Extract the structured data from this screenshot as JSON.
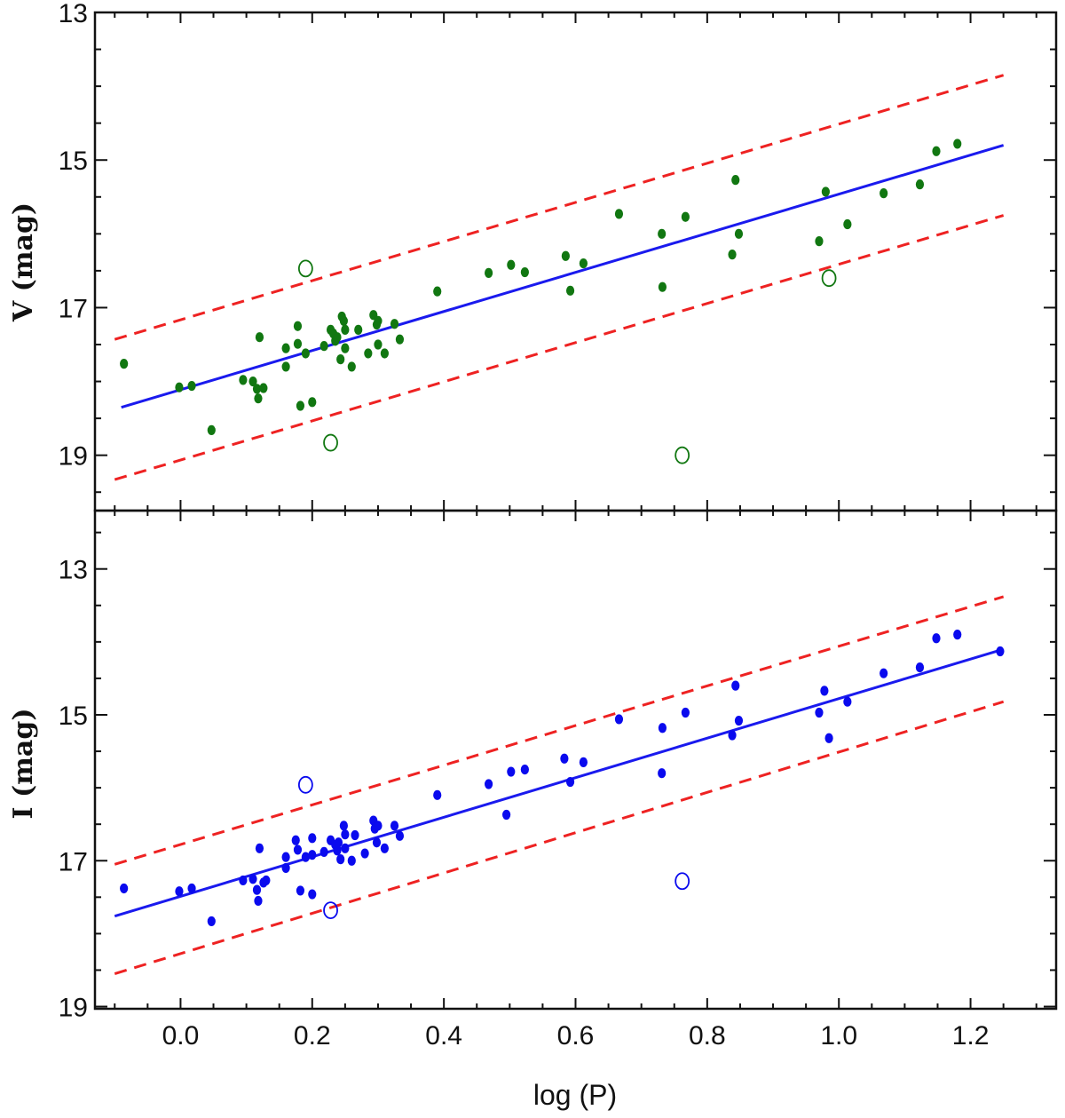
{
  "chart_data": [
    {
      "type": "scatter",
      "panel": "top",
      "ylabel": "V (mag)",
      "xlim": [
        -0.13,
        1.33
      ],
      "ylim": [
        13,
        19.75
      ],
      "y_inverted": true,
      "yticks": [
        13,
        15,
        17,
        19
      ],
      "ytick_labels": [
        "13",
        "15",
        "17",
        "19"
      ],
      "color": "#117711",
      "fit_line": {
        "x": [
          -0.09,
          1.25
        ],
        "y": [
          18.35,
          14.8
        ],
        "color": "#1a1aee"
      },
      "upper_bound": {
        "x": [
          -0.1,
          1.25
        ],
        "y": [
          17.43,
          13.85
        ],
        "color": "#ee2222",
        "dashed": true
      },
      "lower_bound": {
        "x": [
          -0.1,
          1.25
        ],
        "y": [
          19.33,
          15.75
        ],
        "color": "#ee2222",
        "dashed": true
      },
      "points": [
        [
          -0.086,
          17.76
        ],
        [
          -0.002,
          18.08
        ],
        [
          0.017,
          18.06
        ],
        [
          0.047,
          18.66
        ],
        [
          0.095,
          17.98
        ],
        [
          0.11,
          18.0
        ],
        [
          0.116,
          18.1
        ],
        [
          0.118,
          18.23
        ],
        [
          0.12,
          17.4
        ],
        [
          0.126,
          18.09
        ],
        [
          0.16,
          17.55
        ],
        [
          0.16,
          17.8
        ],
        [
          0.178,
          17.49
        ],
        [
          0.178,
          17.25
        ],
        [
          0.182,
          18.33
        ],
        [
          0.19,
          17.62
        ],
        [
          0.2,
          18.28
        ],
        [
          0.218,
          17.52
        ],
        [
          0.228,
          17.3
        ],
        [
          0.232,
          17.35
        ],
        [
          0.235,
          17.45
        ],
        [
          0.238,
          17.4
        ],
        [
          0.243,
          17.7
        ],
        [
          0.245,
          17.12
        ],
        [
          0.248,
          17.18
        ],
        [
          0.25,
          17.3
        ],
        [
          0.25,
          17.55
        ],
        [
          0.26,
          17.8
        ],
        [
          0.27,
          17.3
        ],
        [
          0.285,
          17.62
        ],
        [
          0.293,
          17.1
        ],
        [
          0.298,
          17.23
        ],
        [
          0.3,
          17.18
        ],
        [
          0.3,
          17.5
        ],
        [
          0.31,
          17.62
        ],
        [
          0.325,
          17.22
        ],
        [
          0.333,
          17.43
        ],
        [
          0.39,
          16.78
        ],
        [
          0.468,
          16.53
        ],
        [
          0.502,
          16.42
        ],
        [
          0.523,
          16.52
        ],
        [
          0.585,
          16.3
        ],
        [
          0.592,
          16.77
        ],
        [
          0.612,
          16.4
        ],
        [
          0.666,
          15.73
        ],
        [
          0.731,
          16.0
        ],
        [
          0.732,
          16.72
        ],
        [
          0.767,
          15.77
        ],
        [
          0.838,
          16.28
        ],
        [
          0.843,
          15.27
        ],
        [
          0.848,
          16.0
        ],
        [
          0.97,
          16.1
        ],
        [
          0.98,
          15.43
        ],
        [
          1.013,
          15.87
        ],
        [
          1.068,
          15.45
        ],
        [
          1.123,
          15.33
        ],
        [
          1.148,
          14.88
        ],
        [
          1.18,
          14.78
        ]
      ],
      "outliers": [
        [
          0.19,
          16.47
        ],
        [
          0.228,
          18.83
        ],
        [
          0.762,
          19.0
        ],
        [
          0.985,
          16.6
        ]
      ]
    },
    {
      "type": "scatter",
      "panel": "bottom",
      "ylabel": "I (mag)",
      "xlabel": "log (P)",
      "xlim": [
        -0.13,
        1.33
      ],
      "ylim": [
        12.2,
        19.03
      ],
      "y_inverted": true,
      "yticks": [
        13,
        15,
        17,
        19
      ],
      "ytick_labels": [
        "13",
        "15",
        "17",
        "19"
      ],
      "xticks": [
        0.0,
        0.2,
        0.4,
        0.6,
        0.8,
        1.0,
        1.2
      ],
      "xtick_labels": [
        "0.0",
        "0.2",
        "0.4",
        "0.6",
        "0.8",
        "1.0",
        "1.2"
      ],
      "color": "#0a0aee",
      "fit_line": {
        "x": [
          -0.1,
          1.25
        ],
        "y": [
          17.76,
          14.1
        ],
        "color": "#1a1aee"
      },
      "upper_bound": {
        "x": [
          -0.1,
          1.25
        ],
        "y": [
          17.05,
          13.38
        ],
        "color": "#ee2222",
        "dashed": true
      },
      "lower_bound": {
        "x": [
          -0.1,
          1.25
        ],
        "y": [
          18.55,
          14.82
        ],
        "color": "#ee2222",
        "dashed": true
      },
      "points": [
        [
          -0.086,
          17.38
        ],
        [
          -0.002,
          17.42
        ],
        [
          0.017,
          17.38
        ],
        [
          0.047,
          17.83
        ],
        [
          0.095,
          17.27
        ],
        [
          0.11,
          17.25
        ],
        [
          0.116,
          17.4
        ],
        [
          0.118,
          17.55
        ],
        [
          0.12,
          16.83
        ],
        [
          0.126,
          17.3
        ],
        [
          0.13,
          17.27
        ],
        [
          0.16,
          16.95
        ],
        [
          0.16,
          17.1
        ],
        [
          0.175,
          16.72
        ],
        [
          0.178,
          16.85
        ],
        [
          0.182,
          17.41
        ],
        [
          0.19,
          16.95
        ],
        [
          0.2,
          16.69
        ],
        [
          0.2,
          16.92
        ],
        [
          0.2,
          17.46
        ],
        [
          0.218,
          16.88
        ],
        [
          0.228,
          16.72
        ],
        [
          0.235,
          16.78
        ],
        [
          0.238,
          16.86
        ],
        [
          0.24,
          16.75
        ],
        [
          0.243,
          16.98
        ],
        [
          0.248,
          16.52
        ],
        [
          0.25,
          16.64
        ],
        [
          0.25,
          16.83
        ],
        [
          0.26,
          17.0
        ],
        [
          0.265,
          16.65
        ],
        [
          0.28,
          16.9
        ],
        [
          0.293,
          16.45
        ],
        [
          0.295,
          16.56
        ],
        [
          0.298,
          16.75
        ],
        [
          0.3,
          16.52
        ],
        [
          0.31,
          16.83
        ],
        [
          0.325,
          16.52
        ],
        [
          0.333,
          16.66
        ],
        [
          0.39,
          16.1
        ],
        [
          0.468,
          15.95
        ],
        [
          0.495,
          16.37
        ],
        [
          0.502,
          15.78
        ],
        [
          0.523,
          15.75
        ],
        [
          0.583,
          15.6
        ],
        [
          0.592,
          15.92
        ],
        [
          0.612,
          15.65
        ],
        [
          0.666,
          15.06
        ],
        [
          0.731,
          15.8
        ],
        [
          0.732,
          15.18
        ],
        [
          0.767,
          14.97
        ],
        [
          0.838,
          15.28
        ],
        [
          0.843,
          14.6
        ],
        [
          0.848,
          15.08
        ],
        [
          0.97,
          14.97
        ],
        [
          0.978,
          14.67
        ],
        [
          0.985,
          15.32
        ],
        [
          1.013,
          14.82
        ],
        [
          1.068,
          14.43
        ],
        [
          1.123,
          14.35
        ],
        [
          1.148,
          13.95
        ],
        [
          1.18,
          13.9
        ],
        [
          1.245,
          14.13
        ]
      ],
      "outliers": [
        [
          0.19,
          15.96
        ],
        [
          0.228,
          17.68
        ],
        [
          0.762,
          17.28
        ]
      ]
    }
  ]
}
